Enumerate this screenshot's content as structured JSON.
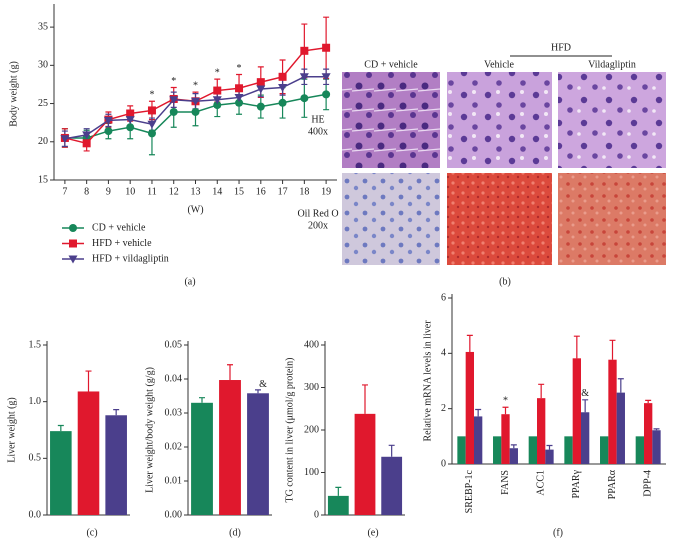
{
  "chart_data": [
    {
      "type": "line",
      "panel_label": "(a)",
      "ylabel": "Body weight (g)",
      "xlabel": "(W)",
      "x": [
        7,
        8,
        9,
        10,
        11,
        12,
        13,
        14,
        15,
        16,
        17,
        18,
        19
      ],
      "xlim": [
        6.5,
        19.5
      ],
      "xticks": [
        7,
        8,
        9,
        10,
        11,
        12,
        13,
        14,
        15,
        16,
        17,
        18,
        19
      ],
      "ylim": [
        15,
        37.5
      ],
      "yticks": [
        15,
        20,
        25,
        30,
        35
      ],
      "series": [
        {
          "name": "CD + vehicle",
          "color": "#17875a",
          "marker": "circle",
          "values": [
            20.5,
            20.5,
            21.4,
            21.9,
            21.1,
            23.9,
            23.9,
            24.8,
            25.1,
            24.6,
            25.1,
            25.7,
            26.2
          ],
          "errors": [
            1.2,
            1.0,
            1.0,
            1.5,
            2.8,
            2.0,
            1.8,
            1.5,
            1.5,
            1.5,
            2.0,
            2.5,
            2.0
          ]
        },
        {
          "name": "HFD + vehicle",
          "color": "#e0182d",
          "marker": "square",
          "values": [
            20.5,
            19.8,
            22.9,
            23.7,
            24.1,
            25.6,
            25.3,
            26.7,
            27.0,
            27.8,
            28.5,
            31.9,
            32.3
          ],
          "errors": [
            1.2,
            1.0,
            1.0,
            1.0,
            1.2,
            1.5,
            1.2,
            1.5,
            1.8,
            2.0,
            2.2,
            3.5,
            4.0
          ]
        },
        {
          "name": "HFD + vildagliptin",
          "color": "#4b3f8c",
          "marker": "triangle-down",
          "values": [
            20.4,
            20.9,
            22.8,
            22.9,
            22.3,
            25.5,
            25.3,
            25.5,
            25.8,
            26.9,
            27.1,
            28.5,
            28.5
          ],
          "errors": [
            1.0,
            0.8,
            0.8,
            0.8,
            0.8,
            1.0,
            1.0,
            1.0,
            1.0,
            1.0,
            1.0,
            1.0,
            1.0
          ]
        }
      ],
      "annotations": [
        {
          "text": "*",
          "x": 11
        },
        {
          "text": "*",
          "x": 12
        },
        {
          "text": "*",
          "x": 13
        },
        {
          "text": "*",
          "x": 14
        },
        {
          "text": "*",
          "x": 15
        }
      ]
    },
    {
      "type": "bar",
      "panel_label": "(c)",
      "ylabel": "Liver weight (g)",
      "values": [
        0.74,
        1.09,
        0.88
      ],
      "errors": [
        0.05,
        0.18,
        0.05
      ],
      "colors": [
        "#17875a",
        "#e0182d",
        "#4b3f8c"
      ],
      "ylim": [
        0,
        1.5
      ],
      "yticks": [
        {
          "value": 0,
          "label": "0.0"
        },
        0.5,
        {
          "value": 1,
          "label": "1.0"
        },
        1.5
      ]
    },
    {
      "type": "bar",
      "panel_label": "(d)",
      "ylabel": "Liver weight/body weight (g/g)",
      "values": [
        0.033,
        0.0397,
        0.0358
      ],
      "errors": [
        0.0015,
        0.0045,
        0.001
      ],
      "colors": [
        "#17875a",
        "#e0182d",
        "#4b3f8c"
      ],
      "ylim": [
        0,
        0.05
      ],
      "yticks": [
        {
          "value": 0,
          "label": "0.00"
        },
        0.01,
        0.02,
        0.03,
        0.04,
        0.05
      ],
      "annotations": [
        {
          "text": "&",
          "index": 2
        }
      ]
    },
    {
      "type": "bar",
      "panel_label": "(e)",
      "ylabel": "TG content in liver (μmol/g protein)",
      "values": [
        45,
        238,
        137
      ],
      "errors": [
        20,
        68,
        27
      ],
      "colors": [
        "#17875a",
        "#e0182d",
        "#4b3f8c"
      ],
      "ylim": [
        0,
        400
      ],
      "yticks": [
        0,
        100,
        200,
        300,
        400
      ]
    },
    {
      "type": "bar",
      "panel_label": "(f)",
      "ylabel": "Relative mRNA levels in liver",
      "categories": [
        "SREBP-1c",
        "FANS",
        "ACC1",
        "PPARγ",
        "PPARα",
        "DPP-4"
      ],
      "series": [
        {
          "color": "#17875a",
          "values": [
            1,
            1,
            1,
            1,
            1,
            1
          ]
        },
        {
          "color": "#e0182d",
          "values": [
            4.05,
            1.8,
            2.38,
            3.82,
            3.77,
            2.2
          ],
          "errors": [
            0.6,
            0.25,
            0.5,
            0.8,
            0.7,
            0.1
          ]
        },
        {
          "color": "#4b3f8c",
          "values": [
            1.72,
            0.57,
            0.52,
            1.87,
            2.58,
            1.22
          ],
          "errors": [
            0.25,
            0.12,
            0.15,
            0.45,
            0.5,
            0.05
          ]
        }
      ],
      "ylim": [
        0,
        6
      ],
      "yticks": [
        0,
        2,
        4,
        6
      ],
      "annotations": [
        {
          "text": "*",
          "index": 1,
          "series": 1
        },
        {
          "text": "&",
          "index": 3,
          "series": 2
        }
      ]
    }
  ],
  "histology": {
    "panel_label": "(b)",
    "group": "HFD",
    "columns": [
      "CD + vehicle",
      "Vehicle",
      "Vildagliptin"
    ],
    "rows": [
      [
        "HE",
        "400x"
      ],
      [
        "Oil Red O",
        "200x"
      ]
    ]
  }
}
